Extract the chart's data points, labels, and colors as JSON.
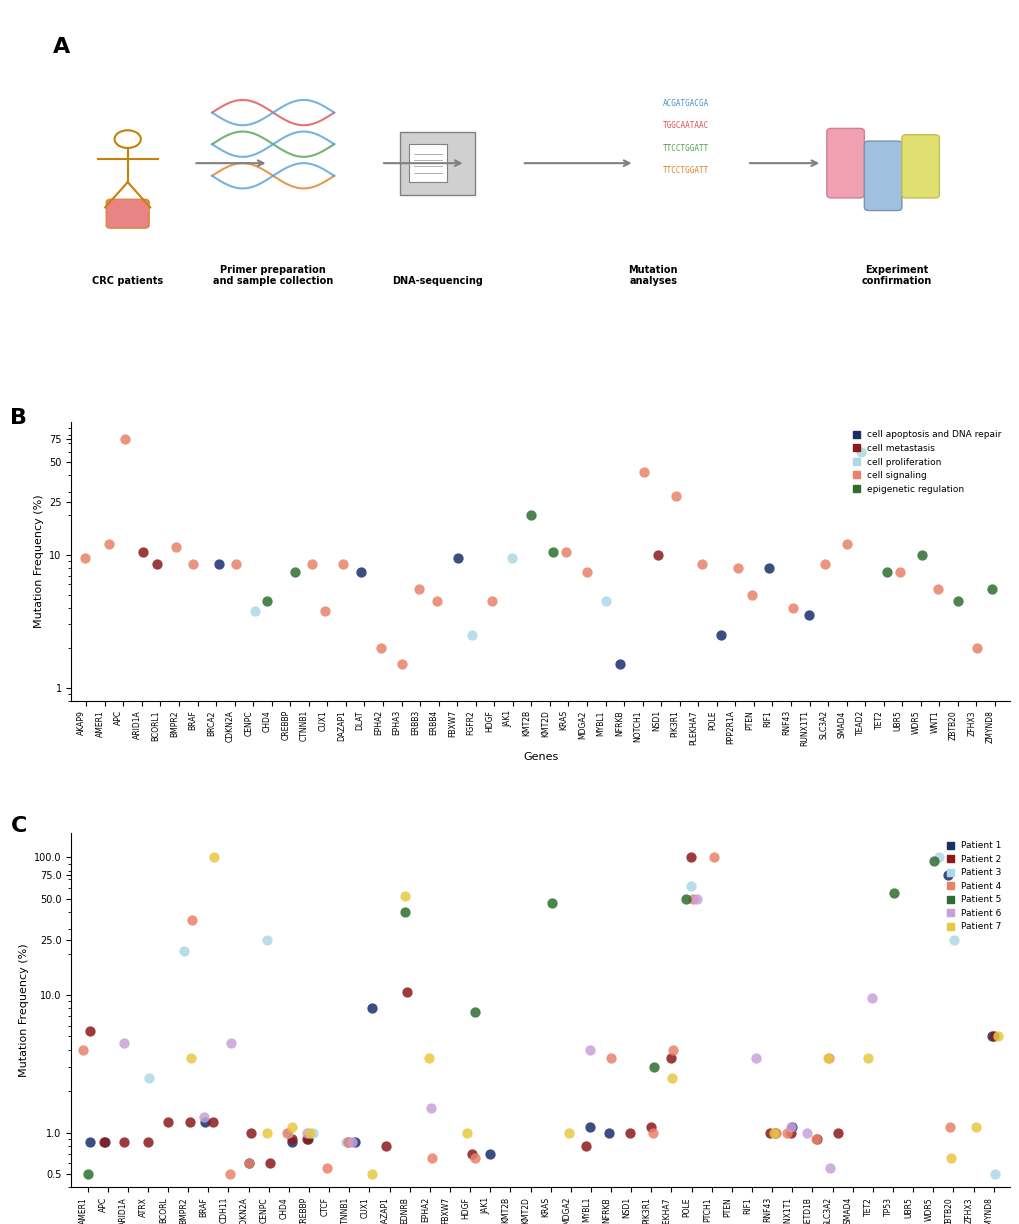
{
  "panel_B": {
    "title": "B",
    "ylabel": "Mutation Frequency (%)",
    "xlabel": "Genes",
    "yticks": [
      1,
      10,
      25,
      50,
      75
    ],
    "ylim": [
      0.8,
      100
    ],
    "genes": [
      "AKAP9",
      "AMER1",
      "APC",
      "ARID1A",
      "BCORL1",
      "BMPR2",
      "BRAF",
      "BRCA2",
      "CDKN2A",
      "CENPC",
      "CHD4",
      "CREBBP",
      "CTNNB1",
      "CUX1",
      "DAZAP1",
      "DLAT",
      "EPHA2",
      "EPHA3",
      "ERBB3",
      "ERBB4",
      "FBXW7",
      "FGFR2",
      "HDGF",
      "JAK1",
      "KMT2B",
      "KMT2D",
      "KRAS",
      "MDGA2",
      "MYBL1",
      "NFRKB",
      "NOTCH1",
      "NSD1",
      "PIK3R1",
      "PLEKHA7",
      "POLE",
      "PPP2R1A",
      "PTEN",
      "RIF1",
      "RNF43",
      "RUNX1T1",
      "SLC3A2",
      "SMAD4",
      "TEAD2",
      "TET2",
      "UBR5",
      "WDR5",
      "WNT1",
      "ZBTB20",
      "ZFHX3",
      "ZMYND8"
    ],
    "values": [
      9.5,
      12.0,
      75.0,
      10.5,
      8.5,
      11.5,
      8.5,
      8.5,
      8.5,
      3.8,
      4.5,
      7.5,
      8.5,
      3.8,
      8.5,
      7.5,
      2.0,
      1.5,
      5.5,
      4.5,
      9.5,
      2.5,
      4.5,
      9.5,
      20.0,
      10.5,
      10.5,
      7.5,
      4.5,
      1.5,
      42.0,
      10.0,
      28.0,
      8.5,
      2.5,
      8.0,
      5.0,
      8.0,
      4.0,
      3.5,
      8.5,
      12.0,
      60.0,
      7.5,
      7.5,
      10.0,
      5.5,
      4.5,
      2.0,
      5.5
    ],
    "categories": [
      "cell signaling",
      "cell signaling",
      "cell signaling",
      "cell metastasis",
      "cell metastasis",
      "cell signaling",
      "cell signaling",
      "cell apoptosis and DNA repair",
      "cell signaling",
      "cell proliferation",
      "epigenetic regulation",
      "epigenetic regulation",
      "cell signaling",
      "cell signaling",
      "cell signaling",
      "cell apoptosis and DNA repair",
      "cell signaling",
      "cell signaling",
      "cell signaling",
      "cell signaling",
      "cell apoptosis and DNA repair",
      "cell proliferation",
      "cell signaling",
      "cell proliferation",
      "epigenetic regulation",
      "epigenetic regulation",
      "cell signaling",
      "cell signaling",
      "cell proliferation",
      "cell apoptosis and DNA repair",
      "cell signaling",
      "cell metastasis",
      "cell signaling",
      "cell signaling",
      "cell apoptosis and DNA repair",
      "cell signaling",
      "cell signaling",
      "cell apoptosis and DNA repair",
      "cell signaling",
      "cell apoptosis and DNA repair",
      "cell signaling",
      "cell signaling",
      "cell proliferation",
      "epigenetic regulation",
      "cell signaling",
      "epigenetic regulation",
      "cell signaling",
      "epigenetic regulation",
      "cell signaling",
      "epigenetic regulation"
    ],
    "category_colors": {
      "cell apoptosis and DNA repair": "#1a2e6e",
      "cell metastasis": "#8b1a1a",
      "cell proliferation": "#add8e6",
      "cell signaling": "#e8826a",
      "epigenetic regulation": "#2e6e2e"
    },
    "legend_labels": [
      "cell apoptosis and DNA repair",
      "cell metastasis",
      "cell proliferation",
      "cell signaling",
      "epigenetic regulation"
    ]
  },
  "panel_C": {
    "title": "C",
    "ylabel": "Mutation Frequency (%)",
    "xlabel": "Genes",
    "yticks": [
      0.5,
      1.0,
      10.0,
      25.0,
      50.0,
      75.0,
      100.0
    ],
    "ylim": [
      0.4,
      150
    ],
    "genes": [
      "AMER1",
      "APC",
      "ARID1A",
      "ATRX",
      "BCORL",
      "BMPR2",
      "BRAF",
      "CDH11",
      "CDKN2A",
      "CENPC",
      "CHD4",
      "CREBBP",
      "CTCF",
      "CTNNB1",
      "CUX1",
      "DAZAP1",
      "EDNRB",
      "EPHA2",
      "FBXW7",
      "HDGF",
      "JAK1",
      "KMT2B",
      "KMT2D",
      "KRAS",
      "MDGA2",
      "MYBL1",
      "NFRKB",
      "NSD1",
      "PIK3R1",
      "PLEKHA7",
      "POLE",
      "PTCH1",
      "PTEN",
      "RIF1",
      "RNF43",
      "RUNX1T1",
      "SETD1B",
      "SLC3A2",
      "SMAD4",
      "TET2",
      "TP53",
      "UBR5",
      "WDR5",
      "ZBTB20",
      "ZFHX3",
      "ZMYND8"
    ],
    "patient_colors": {
      "Patient 1": "#1a2e6e",
      "Patient 2": "#8b1a1a",
      "Patient 3": "#add8e6",
      "Patient 4": "#e8826a",
      "Patient 5": "#2e6e2e",
      "Patient 6": "#c8a0d8",
      "Patient 7": "#e8c840"
    },
    "data": {
      "Patient 1": {
        "AMER1": 0.85,
        "APC": 0.85,
        "ARID1A": null,
        "ATRX": null,
        "BCORL": null,
        "BMPR2": null,
        "BRAF": 1.2,
        "CDH11": null,
        "CDKN2A": 0.6,
        "CENPC": null,
        "CHD4": 0.85,
        "CREBBP": 0.9,
        "CTCF": null,
        "CTNNB1": 0.85,
        "CUX1": 8.0,
        "DAZAP1": null,
        "EDNRB": null,
        "EPHA2": null,
        "FBXW7": null,
        "HDGF": null,
        "JAK1": 0.7,
        "KMT2B": null,
        "KMT2D": null,
        "KRAS": null,
        "MDGA2": null,
        "MYBL1": 1.1,
        "NFRKB": 1.0,
        "NSD1": null,
        "PIK3R1": null,
        "PLEKHA7": null,
        "POLE": null,
        "PTCH1": null,
        "PTEN": null,
        "RIF1": null,
        "RNF43": 1.0,
        "RUNX1T1": 1.1,
        "SETD1B": null,
        "SLC3A2": null,
        "SMAD4": null,
        "TET2": null,
        "TP53": null,
        "UBR5": null,
        "WDR5": null,
        "ZBTB20": 75.0,
        "ZFHX3": null,
        "ZMYND8": 5.0
      },
      "Patient 2": {
        "AMER1": 5.5,
        "APC": 0.85,
        "ARID1A": 0.85,
        "ATRX": 0.85,
        "BCORL": 1.2,
        "BMPR2": 1.2,
        "BRAF": 1.2,
        "CDH11": null,
        "CDKN2A": 1.0,
        "CENPC": 0.6,
        "CHD4": 0.9,
        "CREBBP": 0.9,
        "CTCF": null,
        "CTNNB1": 0.85,
        "CUX1": null,
        "DAZAP1": 0.8,
        "EDNRB": 10.5,
        "EPHA2": null,
        "FBXW7": null,
        "HDGF": 0.7,
        "JAK1": null,
        "KMT2B": null,
        "KMT2D": null,
        "KRAS": null,
        "MDGA2": null,
        "MYBL1": 0.8,
        "NFRKB": null,
        "NSD1": 1.0,
        "PIK3R1": 1.1,
        "PLEKHA7": 3.5,
        "POLE": 100.0,
        "PTCH1": null,
        "PTEN": null,
        "RIF1": null,
        "RNF43": 1.0,
        "RUNX1T1": 1.0,
        "SETD1B": 0.9,
        "SLC3A2": 1.0,
        "SMAD4": null,
        "TET2": null,
        "TP53": null,
        "UBR5": null,
        "WDR5": null,
        "ZBTB20": null,
        "ZFHX3": null,
        "ZMYND8": 5.0
      },
      "Patient 3": {
        "AMER1": null,
        "APC": null,
        "ARID1A": null,
        "ATRX": 2.5,
        "BCORL": null,
        "BMPR2": 21.0,
        "BRAF": null,
        "CDH11": null,
        "CDKN2A": null,
        "CENPC": 25.0,
        "CHD4": 1.0,
        "CREBBP": 1.0,
        "CTCF": null,
        "CTNNB1": 0.85,
        "CUX1": null,
        "DAZAP1": null,
        "EDNRB": null,
        "EPHA2": null,
        "FBXW7": null,
        "HDGF": null,
        "JAK1": null,
        "KMT2B": null,
        "KMT2D": null,
        "KRAS": null,
        "MDGA2": null,
        "MYBL1": null,
        "NFRKB": null,
        "NSD1": null,
        "PIK3R1": null,
        "PLEKHA7": null,
        "POLE": 62.0,
        "PTCH1": null,
        "PTEN": null,
        "RIF1": null,
        "RNF43": null,
        "RUNX1T1": null,
        "SETD1B": null,
        "SLC3A2": null,
        "SMAD4": null,
        "TET2": null,
        "TP53": null,
        "UBR5": null,
        "WDR5": 100.0,
        "ZBTB20": 25.0,
        "ZFHX3": null,
        "ZMYND8": 0.5
      },
      "Patient 4": {
        "AMER1": 4.0,
        "APC": null,
        "ARID1A": null,
        "ATRX": null,
        "BCORL": null,
        "BMPR2": 35.0,
        "BRAF": null,
        "CDH11": 0.5,
        "CDKN2A": 0.6,
        "CENPC": null,
        "CHD4": 1.0,
        "CREBBP": null,
        "CTCF": 0.55,
        "CTNNB1": 0.85,
        "CUX1": null,
        "DAZAP1": null,
        "EDNRB": null,
        "EPHA2": 0.65,
        "FBXW7": null,
        "HDGF": 0.65,
        "JAK1": null,
        "KMT2B": null,
        "KMT2D": null,
        "KRAS": null,
        "MDGA2": null,
        "MYBL1": null,
        "NFRKB": 3.5,
        "NSD1": null,
        "PIK3R1": 1.0,
        "PLEKHA7": 4.0,
        "POLE": 50.0,
        "PTCH1": 100.0,
        "PTEN": null,
        "RIF1": null,
        "RNF43": 1.0,
        "RUNX1T1": 1.0,
        "SETD1B": 0.9,
        "SLC3A2": 3.5,
        "SMAD4": null,
        "TET2": null,
        "TP53": null,
        "UBR5": null,
        "WDR5": null,
        "ZBTB20": 1.1,
        "ZFHX3": null,
        "ZMYND8": null
      },
      "Patient 5": {
        "AMER1": 0.5,
        "APC": null,
        "ARID1A": null,
        "ATRX": null,
        "BCORL": null,
        "BMPR2": null,
        "BRAF": null,
        "CDH11": null,
        "CDKN2A": null,
        "CENPC": null,
        "CHD4": null,
        "CREBBP": null,
        "CTCF": null,
        "CTNNB1": null,
        "CUX1": null,
        "DAZAP1": null,
        "EDNRB": 40.0,
        "EPHA2": null,
        "FBXW7": null,
        "HDGF": 7.5,
        "JAK1": null,
        "KMT2B": null,
        "KMT2D": null,
        "KRAS": 47.0,
        "MDGA2": null,
        "MYBL1": null,
        "NFRKB": null,
        "NSD1": null,
        "PIK3R1": 3.0,
        "PLEKHA7": null,
        "POLE": 50.0,
        "PTCH1": null,
        "PTEN": null,
        "RIF1": null,
        "RNF43": null,
        "RUNX1T1": null,
        "SETD1B": null,
        "SLC3A2": null,
        "SMAD4": null,
        "TET2": null,
        "TP53": 55.0,
        "UBR5": null,
        "WDR5": 95.0,
        "ZBTB20": null,
        "ZFHX3": null,
        "ZMYND8": null
      },
      "Patient 6": {
        "AMER1": null,
        "APC": null,
        "ARID1A": 4.5,
        "ATRX": null,
        "BCORL": null,
        "BMPR2": null,
        "BRAF": 1.3,
        "CDH11": 4.5,
        "CDKN2A": null,
        "CENPC": null,
        "CHD4": null,
        "CREBBP": 1.0,
        "CTCF": null,
        "CTNNB1": 0.85,
        "CUX1": null,
        "DAZAP1": null,
        "EDNRB": null,
        "EPHA2": 1.5,
        "FBXW7": null,
        "HDGF": null,
        "JAK1": null,
        "KMT2B": null,
        "KMT2D": null,
        "KRAS": null,
        "MDGA2": null,
        "MYBL1": 4.0,
        "NFRKB": null,
        "NSD1": null,
        "PIK3R1": null,
        "PLEKHA7": null,
        "POLE": 50.0,
        "PTCH1": null,
        "PTEN": null,
        "RIF1": 3.5,
        "RNF43": null,
        "RUNX1T1": 1.1,
        "SETD1B": 1.0,
        "SLC3A2": 0.55,
        "SMAD4": null,
        "TET2": 9.5,
        "TP53": null,
        "UBR5": null,
        "WDR5": null,
        "ZBTB20": null,
        "ZFHX3": null,
        "ZMYND8": null
      },
      "Patient 7": {
        "AMER1": null,
        "APC": null,
        "ARID1A": null,
        "ATRX": null,
        "BCORL": null,
        "BMPR2": 3.5,
        "BRAF": 100.0,
        "CDH11": null,
        "CDKN2A": null,
        "CENPC": 1.0,
        "CHD4": 1.1,
        "CREBBP": 1.0,
        "CTCF": null,
        "CTNNB1": null,
        "CUX1": 0.5,
        "DAZAP1": null,
        "EDNRB": 52.5,
        "EPHA2": 3.5,
        "FBXW7": null,
        "HDGF": 1.0,
        "JAK1": null,
        "KMT2B": null,
        "KMT2D": null,
        "KRAS": null,
        "MDGA2": 1.0,
        "MYBL1": null,
        "NFRKB": null,
        "NSD1": null,
        "PIK3R1": null,
        "PLEKHA7": 2.5,
        "POLE": null,
        "PTCH1": null,
        "PTEN": null,
        "RIF1": null,
        "RNF43": 1.0,
        "RUNX1T1": null,
        "SETD1B": null,
        "SLC3A2": 3.5,
        "SMAD4": null,
        "TET2": 3.5,
        "TP53": null,
        "UBR5": null,
        "WDR5": null,
        "ZBTB20": 0.65,
        "ZFHX3": 1.1,
        "ZMYND8": 5.0
      }
    }
  }
}
